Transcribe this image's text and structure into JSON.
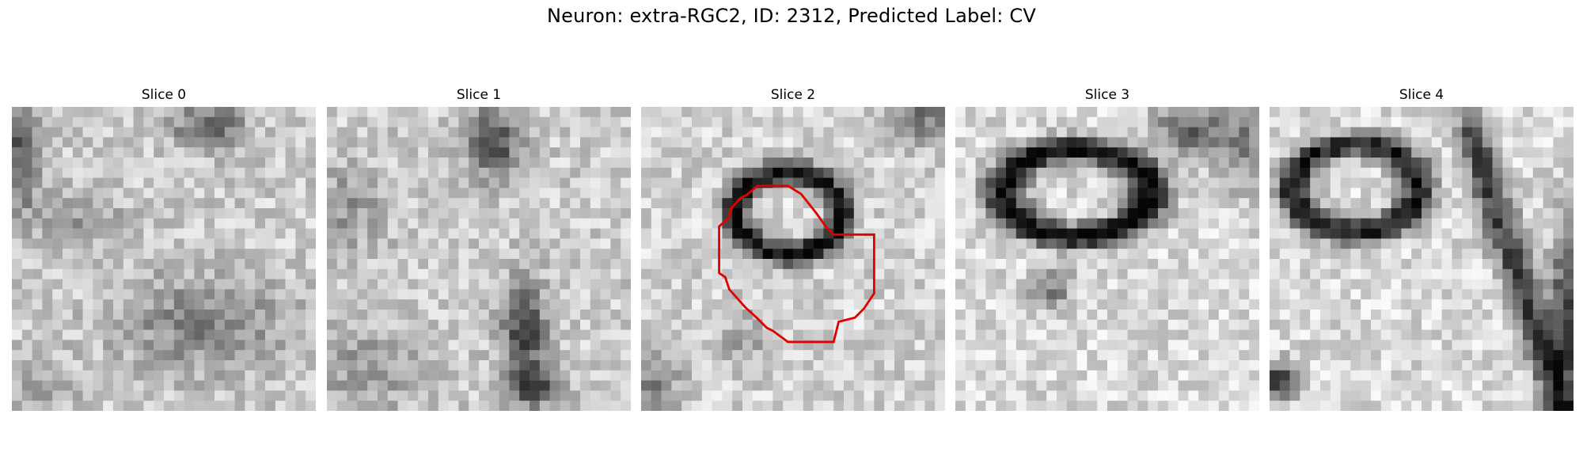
{
  "suptitle": "Neuron: extra-RGC2, ID: 2312, Predicted Label: CV",
  "panels": [
    {
      "title": "Slice 0"
    },
    {
      "title": "Slice 1"
    },
    {
      "title": "Slice 2"
    },
    {
      "title": "Slice 3"
    },
    {
      "title": "Slice 4"
    }
  ],
  "contour": {
    "slice": 2,
    "color": "#e00000"
  }
}
